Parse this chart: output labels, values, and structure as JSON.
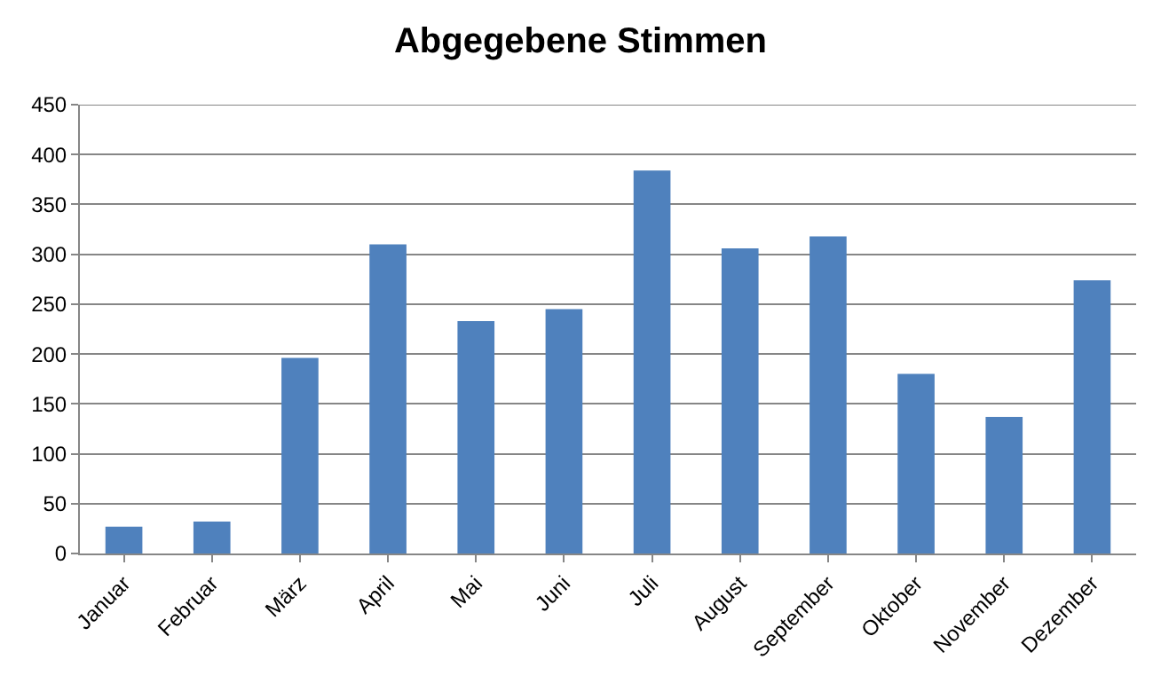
{
  "chart_data": {
    "type": "bar",
    "title": "Abgegebene Stimmen",
    "categories": [
      "Januar",
      "Februar",
      "März",
      "April",
      "Mai",
      "Juni",
      "Juli",
      "August",
      "September",
      "Oktober",
      "November",
      "Dezember"
    ],
    "values": [
      27,
      32,
      196,
      310,
      233,
      245,
      384,
      306,
      318,
      180,
      137,
      274
    ],
    "color": "#4f81bd",
    "ylim": [
      0,
      450
    ],
    "yticks": [
      0,
      50,
      100,
      150,
      200,
      250,
      300,
      350,
      400,
      450
    ],
    "grid": "y"
  }
}
